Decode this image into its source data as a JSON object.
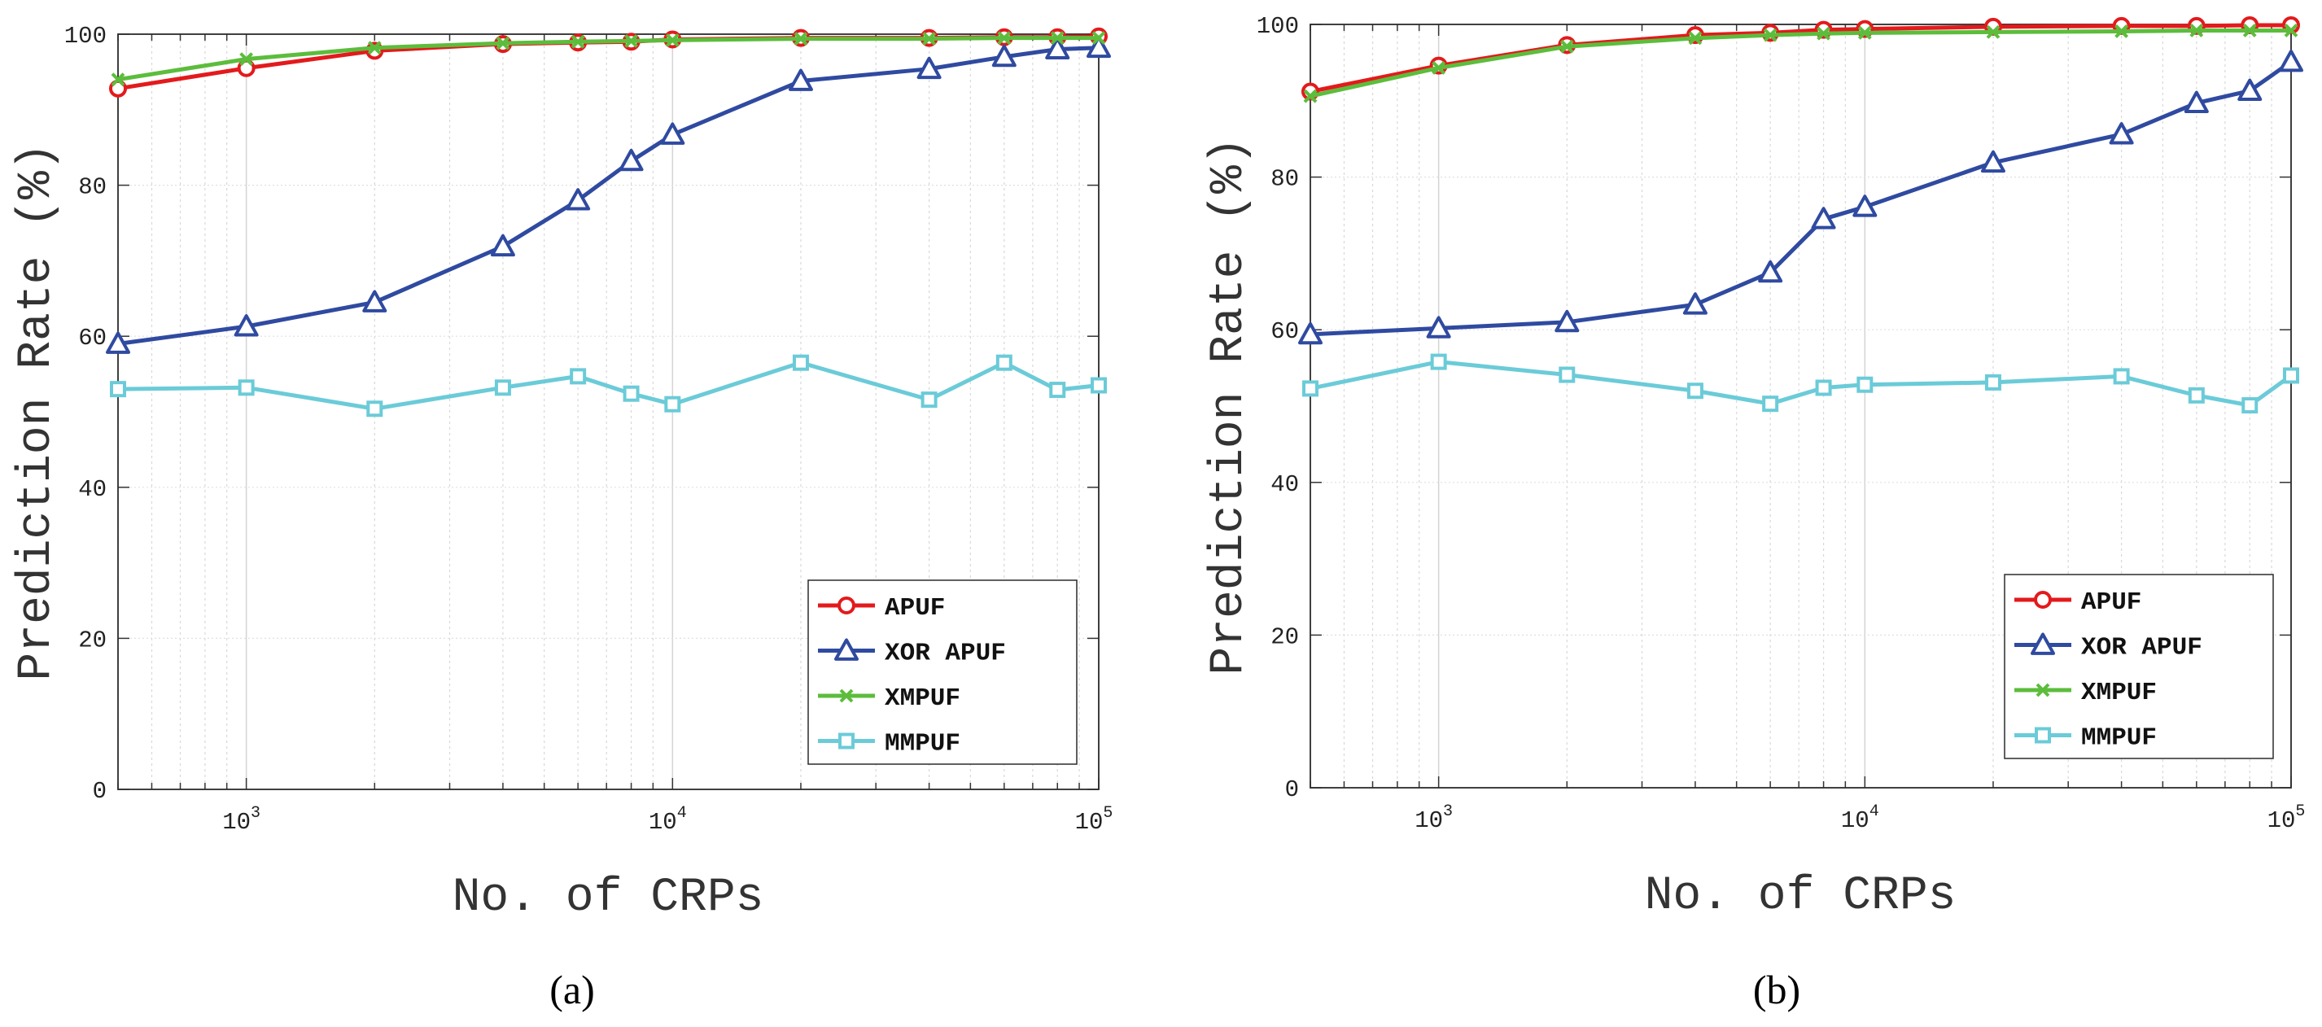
{
  "chart_data": [
    {
      "type": "line",
      "caption": "(a)",
      "xlabel": "No. of CRPs",
      "ylabel": "Prediction Rate (%)",
      "xscale": "log",
      "xlim": [
        500,
        100000
      ],
      "ylim": [
        0,
        100
      ],
      "yticks": [
        0,
        20,
        40,
        60,
        80,
        100
      ],
      "xticks": [
        1000,
        10000,
        100000
      ],
      "xtick_labels": [
        [
          "10",
          "3"
        ],
        [
          "10",
          "4"
        ],
        [
          "10",
          "5"
        ]
      ],
      "grid": true,
      "legend_position": "bottom-right",
      "x": [
        500,
        1000,
        2000,
        4000,
        6000,
        8000,
        10000,
        20000,
        40000,
        60000,
        80000,
        100000
      ],
      "series": [
        {
          "name": "APUF",
          "color": "#e31a1c",
          "marker": "circle",
          "values": [
            92.8,
            95.5,
            97.8,
            98.7,
            98.9,
            99.0,
            99.3,
            99.5,
            99.5,
            99.6,
            99.6,
            99.7
          ]
        },
        {
          "name": "XOR APUF",
          "color": "#2f4aa0",
          "marker": "triangle",
          "values": [
            59.0,
            61.3,
            64.5,
            71.9,
            78.0,
            83.2,
            86.7,
            93.8,
            95.4,
            97.0,
            98.0,
            98.2
          ]
        },
        {
          "name": "XMPUF",
          "color": "#5cbd3c",
          "marker": "x",
          "values": [
            94.0,
            96.7,
            98.2,
            98.8,
            99.0,
            99.1,
            99.2,
            99.4,
            99.4,
            99.5,
            99.5,
            99.5
          ]
        },
        {
          "name": "MMPUF",
          "color": "#6bcbd8",
          "marker": "square",
          "values": [
            53.0,
            53.2,
            50.4,
            53.2,
            54.7,
            52.4,
            51.0,
            56.5,
            51.6,
            56.5,
            52.9,
            53.5
          ]
        }
      ]
    },
    {
      "type": "line",
      "caption": "(b)",
      "xlabel": "No. of CRPs",
      "ylabel": "Prediction Rate (%)",
      "xscale": "log",
      "xlim": [
        500,
        100000
      ],
      "ylim": [
        0,
        100
      ],
      "yticks": [
        0,
        20,
        40,
        60,
        80,
        100
      ],
      "xticks": [
        1000,
        10000,
        100000
      ],
      "xtick_labels": [
        [
          "10",
          "3"
        ],
        [
          "10",
          "4"
        ],
        [
          "10",
          "5"
        ]
      ],
      "grid": true,
      "legend_position": "bottom-right",
      "x": [
        500,
        1000,
        2000,
        4000,
        6000,
        8000,
        10000,
        20000,
        40000,
        60000,
        80000,
        100000
      ],
      "series": [
        {
          "name": "APUF",
          "color": "#e31a1c",
          "marker": "circle",
          "values": [
            91.2,
            94.6,
            97.3,
            98.6,
            98.9,
            99.3,
            99.4,
            99.7,
            99.8,
            99.8,
            99.9,
            99.9
          ]
        },
        {
          "name": "XOR APUF",
          "color": "#2f4aa0",
          "marker": "triangle",
          "values": [
            59.4,
            60.2,
            61.0,
            63.3,
            67.5,
            74.5,
            76.1,
            81.9,
            85.6,
            89.7,
            91.3,
            95.1
          ]
        },
        {
          "name": "XMPUF",
          "color": "#5cbd3c",
          "marker": "x",
          "values": [
            90.6,
            94.3,
            97.1,
            98.2,
            98.6,
            98.8,
            98.9,
            99.0,
            99.1,
            99.2,
            99.2,
            99.2
          ]
        },
        {
          "name": "MMPUF",
          "color": "#6bcbd8",
          "marker": "square",
          "values": [
            52.3,
            55.8,
            54.1,
            52.0,
            50.3,
            52.4,
            52.8,
            53.1,
            53.9,
            51.4,
            50.1,
            54.0
          ]
        }
      ]
    }
  ]
}
